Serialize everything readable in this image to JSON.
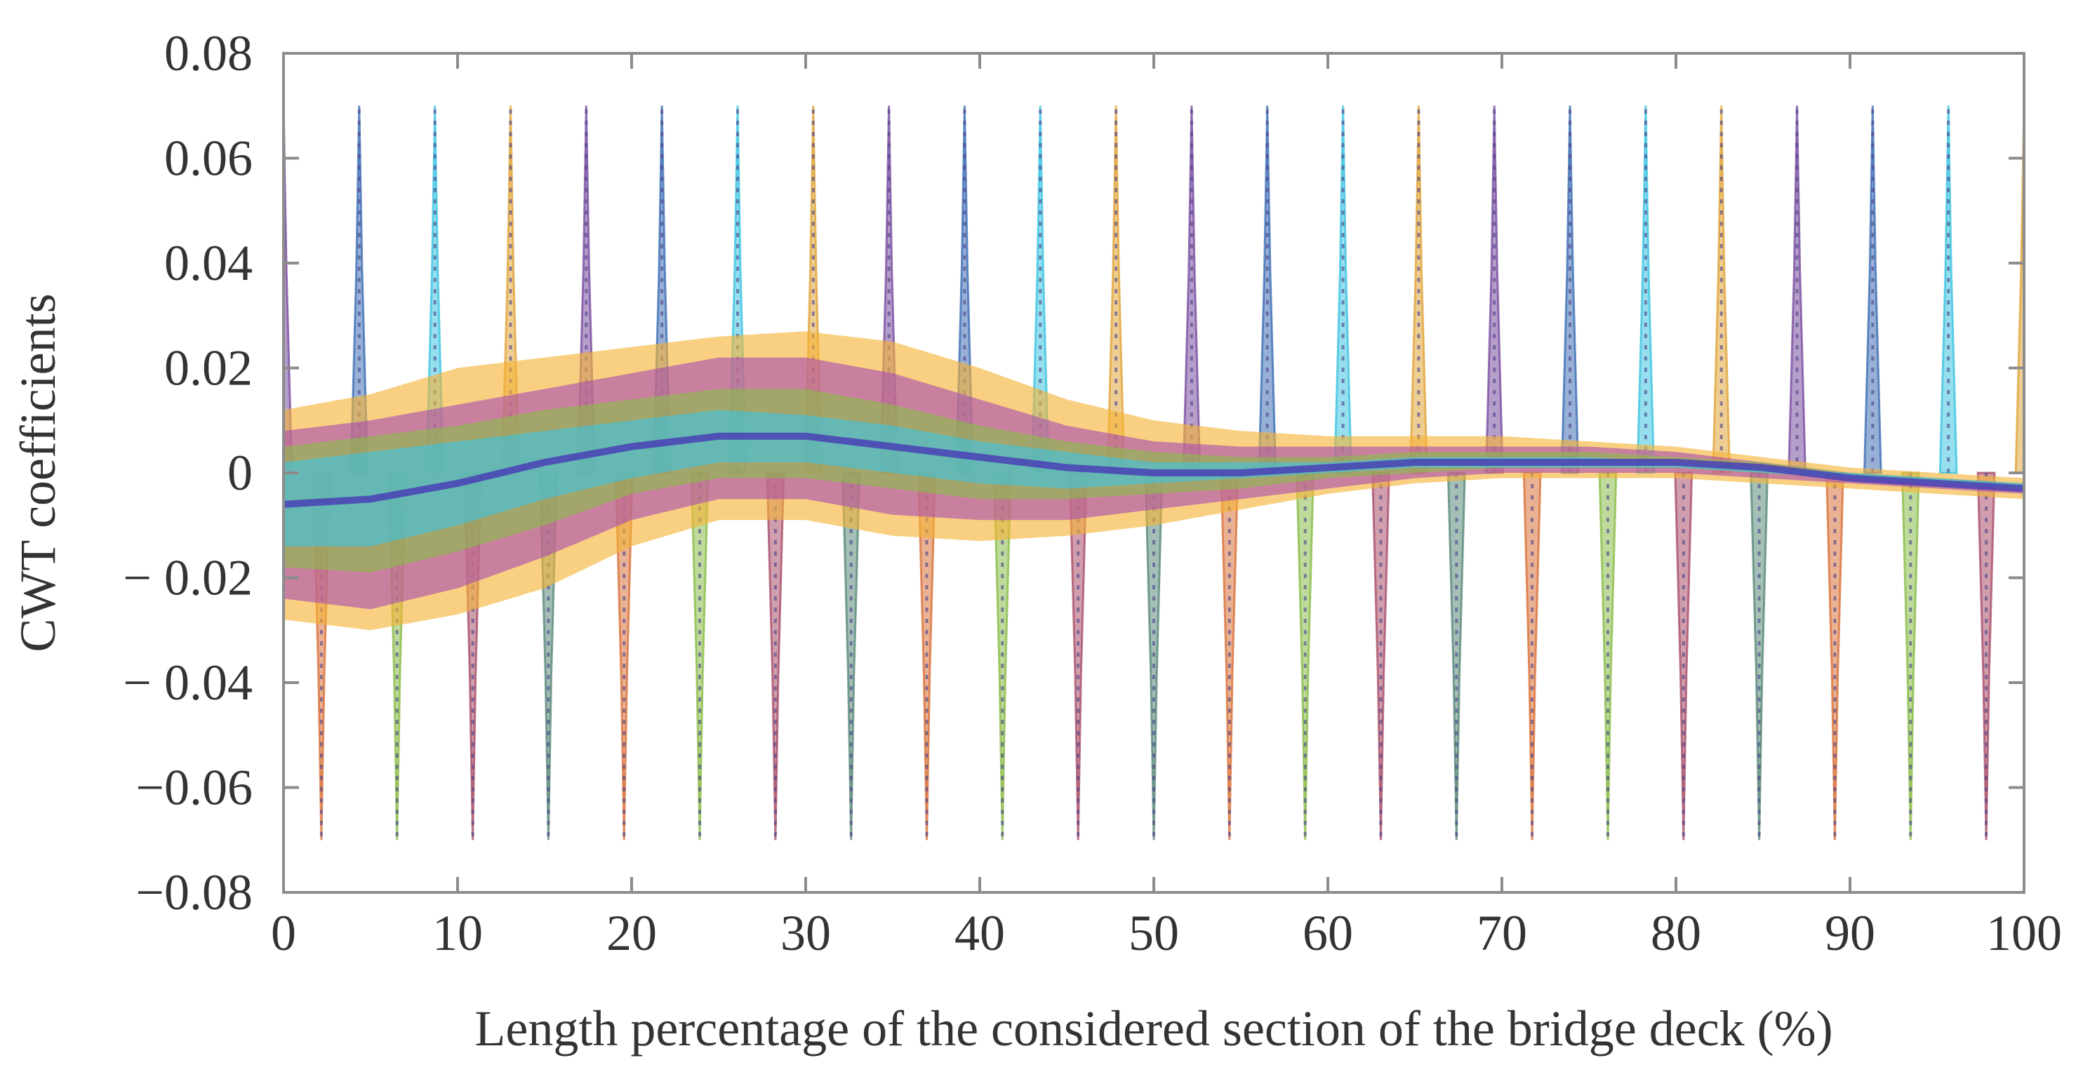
{
  "chart_data": {
    "type": "line",
    "title": "",
    "xlabel": "Length percentage of the considered section of the bridge deck (%)",
    "ylabel": "CWT coefficients",
    "xlim": [
      0,
      100
    ],
    "ylim": [
      -0.08,
      0.08
    ],
    "grid": false,
    "x_ticks": [
      0,
      10,
      20,
      30,
      40,
      50,
      60,
      70,
      80,
      90,
      100
    ],
    "x_tick_labels": [
      "0",
      "10",
      "20",
      "30",
      "40",
      "50",
      "60",
      "70",
      "80",
      "90",
      "100"
    ],
    "y_ticks": [
      0.08,
      0.06,
      0.04,
      0.02,
      0,
      -0.02,
      -0.04,
      -0.06,
      -0.08
    ],
    "y_tick_labels": [
      "0.08",
      "0.06",
      "0.04",
      "0.02",
      "0",
      "− 0.02",
      "− 0.04",
      "−0.06",
      "−0.08"
    ],
    "oscillation": {
      "description_only_for_rendering": true,
      "num_cycles": 46,
      "max_amplitude": 0.07
    },
    "series": [
      {
        "name": "yellow band",
        "color": "#f5b335",
        "x": [
          0,
          5,
          10,
          15,
          20,
          25,
          30,
          35,
          40,
          45,
          50,
          55,
          60,
          65,
          70,
          75,
          80,
          85,
          90,
          95,
          100
        ],
        "upper": [
          0.012,
          0.015,
          0.02,
          0.022,
          0.024,
          0.026,
          0.027,
          0.025,
          0.02,
          0.014,
          0.01,
          0.008,
          0.007,
          0.007,
          0.007,
          0.006,
          0.005,
          0.003,
          0.001,
          0.0,
          -0.001
        ],
        "lower": [
          -0.028,
          -0.03,
          -0.027,
          -0.022,
          -0.014,
          -0.009,
          -0.009,
          -0.012,
          -0.013,
          -0.012,
          -0.01,
          -0.007,
          -0.004,
          -0.002,
          -0.001,
          -0.001,
          -0.001,
          -0.002,
          -0.003,
          -0.004,
          -0.005
        ]
      },
      {
        "name": "magenta band",
        "color": "#a94fb0",
        "x": [
          0,
          5,
          10,
          15,
          20,
          25,
          30,
          35,
          40,
          45,
          50,
          55,
          60,
          65,
          70,
          75,
          80,
          85,
          90,
          95,
          100
        ],
        "upper": [
          0.008,
          0.01,
          0.013,
          0.016,
          0.019,
          0.022,
          0.022,
          0.019,
          0.014,
          0.009,
          0.006,
          0.005,
          0.005,
          0.005,
          0.005,
          0.005,
          0.004,
          0.002,
          0.0,
          -0.001,
          -0.002
        ],
        "lower": [
          -0.024,
          -0.026,
          -0.022,
          -0.016,
          -0.009,
          -0.005,
          -0.005,
          -0.008,
          -0.009,
          -0.009,
          -0.007,
          -0.005,
          -0.003,
          -0.001,
          0.0,
          0.0,
          0.0,
          -0.001,
          -0.002,
          -0.003,
          -0.004
        ]
      },
      {
        "name": "green band",
        "color": "#8bbd4a",
        "x": [
          0,
          5,
          10,
          15,
          20,
          25,
          30,
          35,
          40,
          45,
          50,
          55,
          60,
          65,
          70,
          75,
          80,
          85,
          90,
          95,
          100
        ],
        "upper": [
          0.005,
          0.007,
          0.009,
          0.012,
          0.014,
          0.016,
          0.016,
          0.013,
          0.009,
          0.006,
          0.004,
          0.003,
          0.003,
          0.004,
          0.004,
          0.004,
          0.003,
          0.002,
          0.0,
          -0.001,
          -0.002
        ],
        "lower": [
          -0.018,
          -0.019,
          -0.015,
          -0.01,
          -0.004,
          -0.001,
          -0.001,
          -0.003,
          -0.005,
          -0.005,
          -0.004,
          -0.003,
          -0.001,
          0.0,
          0.001,
          0.001,
          0.001,
          0.0,
          -0.001,
          -0.002,
          -0.003
        ]
      },
      {
        "name": "cyan band",
        "color": "#3fc4e0",
        "x": [
          0,
          5,
          10,
          15,
          20,
          25,
          30,
          35,
          40,
          45,
          50,
          55,
          60,
          65,
          70,
          75,
          80,
          85,
          90,
          95,
          100
        ],
        "upper": [
          0.002,
          0.004,
          0.006,
          0.008,
          0.01,
          0.012,
          0.011,
          0.009,
          0.006,
          0.004,
          0.002,
          0.002,
          0.002,
          0.003,
          0.003,
          0.003,
          0.002,
          0.001,
          0.0,
          -0.001,
          -0.002
        ],
        "lower": [
          -0.014,
          -0.014,
          -0.01,
          -0.005,
          -0.001,
          0.002,
          0.002,
          0.0,
          -0.002,
          -0.003,
          -0.002,
          -0.001,
          0.0,
          0.001,
          0.001,
          0.001,
          0.001,
          0.0,
          -0.001,
          -0.002,
          -0.003
        ]
      },
      {
        "name": "mean line",
        "color": "#4a3fb5",
        "x": [
          0,
          5,
          10,
          15,
          20,
          25,
          30,
          35,
          40,
          45,
          50,
          55,
          60,
          65,
          70,
          75,
          80,
          85,
          90,
          95,
          100
        ],
        "values": [
          -0.006,
          -0.005,
          -0.002,
          0.002,
          0.005,
          0.007,
          0.007,
          0.005,
          0.003,
          0.001,
          0.0,
          0.0,
          0.001,
          0.002,
          0.002,
          0.002,
          0.002,
          0.001,
          -0.001,
          -0.002,
          -0.003
        ]
      }
    ]
  }
}
